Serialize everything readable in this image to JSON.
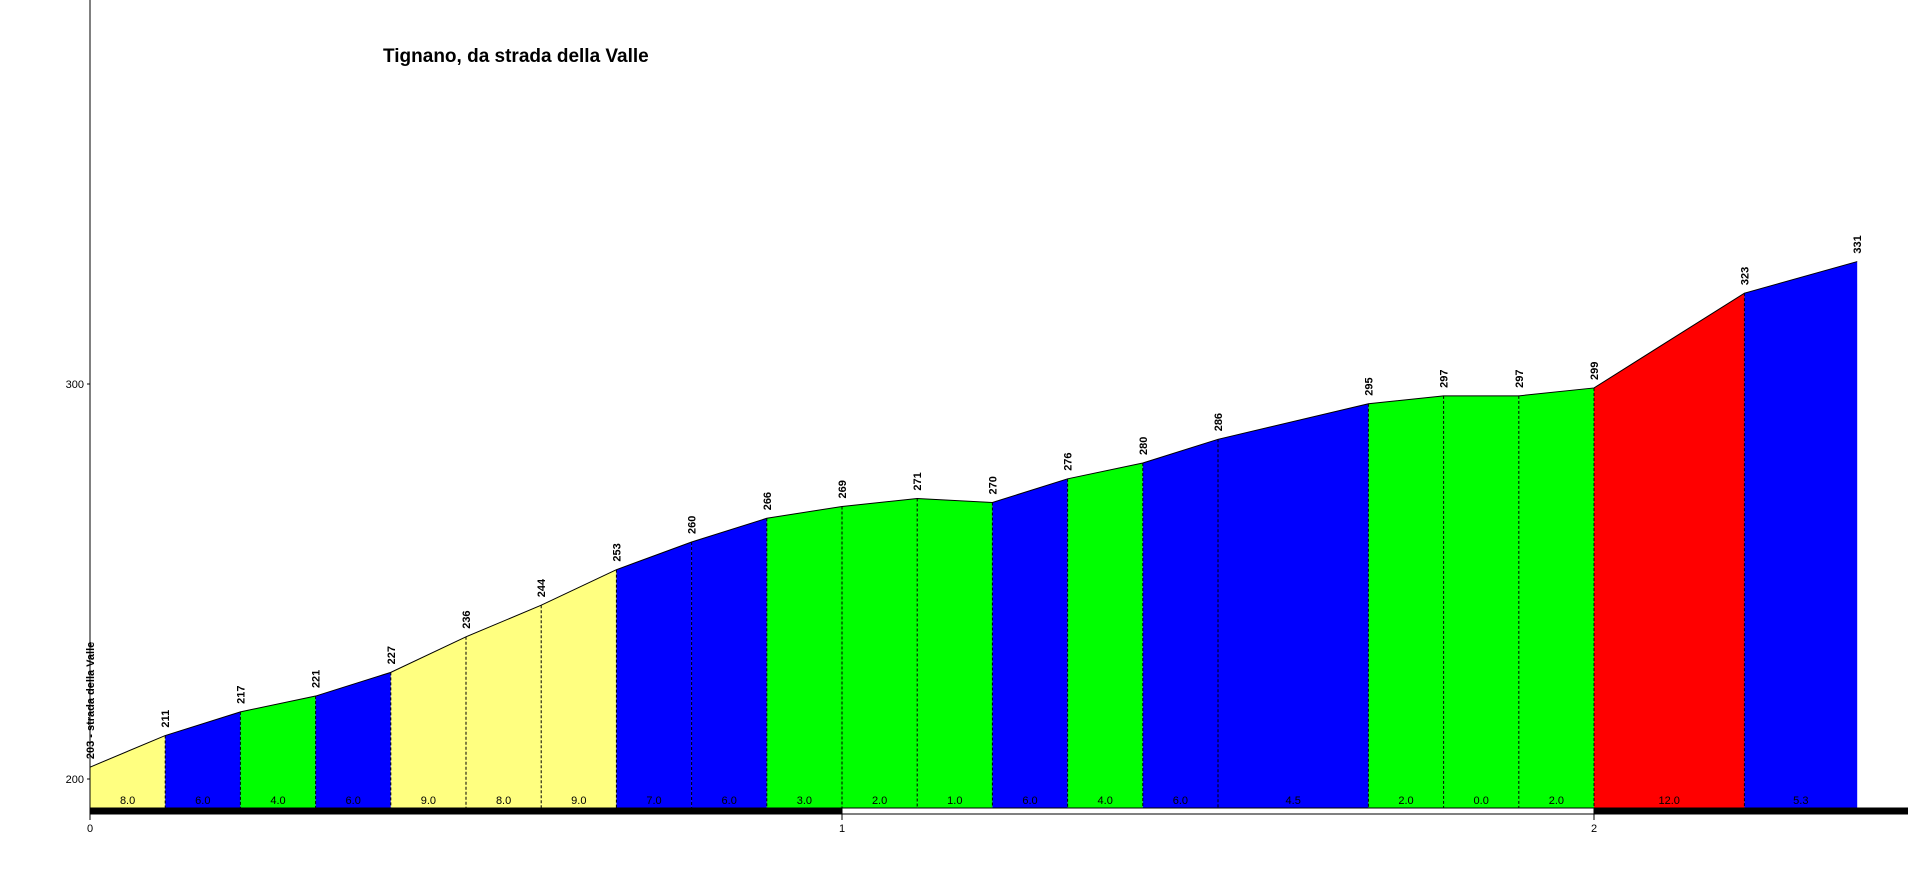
{
  "chart_data": {
    "type": "area",
    "title": "Tignano, da strada della Valle",
    "xlabel": "",
    "ylabel": "",
    "xlim": [
      0,
      2.375
    ],
    "ylim": [
      193,
      400
    ],
    "x_ticks": [
      0,
      1,
      2
    ],
    "y_ticks": [
      200,
      300
    ],
    "start_label": "203 - strada della Valle",
    "gradient_colors": {
      "low": "#ffff80",
      "medium": "#0000ff",
      "easy": "#00ff00",
      "steep": "#ff0000"
    },
    "points": [
      {
        "x": 0.0,
        "elev": 203
      },
      {
        "x": 0.1,
        "elev": 211
      },
      {
        "x": 0.2,
        "elev": 217
      },
      {
        "x": 0.3,
        "elev": 221
      },
      {
        "x": 0.4,
        "elev": 227
      },
      {
        "x": 0.5,
        "elev": 236
      },
      {
        "x": 0.6,
        "elev": 244
      },
      {
        "x": 0.7,
        "elev": 253
      },
      {
        "x": 0.8,
        "elev": 260
      },
      {
        "x": 0.9,
        "elev": 266
      },
      {
        "x": 1.0,
        "elev": 269
      },
      {
        "x": 1.1,
        "elev": 271
      },
      {
        "x": 1.2,
        "elev": 270
      },
      {
        "x": 1.3,
        "elev": 276
      },
      {
        "x": 1.4,
        "elev": 280
      },
      {
        "x": 1.5,
        "elev": 286
      },
      {
        "x": 1.7,
        "elev": 295
      },
      {
        "x": 1.8,
        "elev": 297
      },
      {
        "x": 1.9,
        "elev": 297
      },
      {
        "x": 2.0,
        "elev": 299
      },
      {
        "x": 2.2,
        "elev": 323
      },
      {
        "x": 2.35,
        "elev": 331
      }
    ],
    "segments": [
      {
        "grade": "8.0",
        "color": "#ffff80"
      },
      {
        "grade": "6.0",
        "color": "#0000ff"
      },
      {
        "grade": "4.0",
        "color": "#00ff00"
      },
      {
        "grade": "6.0",
        "color": "#0000ff"
      },
      {
        "grade": "9.0",
        "color": "#ffff80"
      },
      {
        "grade": "8.0",
        "color": "#ffff80"
      },
      {
        "grade": "9.0",
        "color": "#ffff80"
      },
      {
        "grade": "7.0",
        "color": "#0000ff"
      },
      {
        "grade": "6.0",
        "color": "#0000ff"
      },
      {
        "grade": "3.0",
        "color": "#00ff00"
      },
      {
        "grade": "2.0",
        "color": "#00ff00"
      },
      {
        "grade": "1.0",
        "color": "#00ff00"
      },
      {
        "grade": "6.0",
        "color": "#0000ff"
      },
      {
        "grade": "4.0",
        "color": "#00ff00"
      },
      {
        "grade": "6.0",
        "color": "#0000ff"
      },
      {
        "grade": "4.5",
        "color": "#0000ff"
      },
      {
        "grade": "2.0",
        "color": "#00ff00"
      },
      {
        "grade": "0.0",
        "color": "#00ff00"
      },
      {
        "grade": "2.0",
        "color": "#00ff00"
      },
      {
        "grade": "12.0",
        "color": "#ff0000"
      },
      {
        "grade": "5.3",
        "color": "#0000ff"
      }
    ]
  }
}
